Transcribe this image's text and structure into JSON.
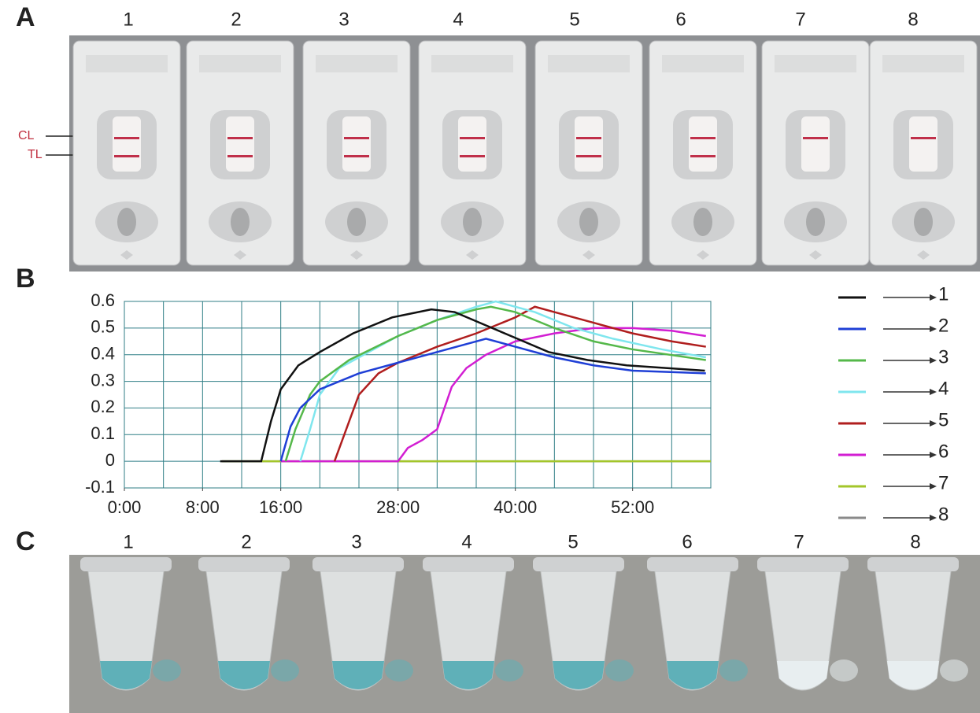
{
  "panel_a": {
    "label": "A",
    "lanes": [
      "1",
      "2",
      "3",
      "4",
      "5",
      "6",
      "7",
      "8"
    ],
    "control_label": "CL",
    "test_label": "TL",
    "test_line": [
      true,
      true,
      true,
      true,
      true,
      true,
      false,
      false
    ]
  },
  "chart_data": {
    "type": "line",
    "label": "B",
    "xlim": [
      0,
      60
    ],
    "ylim": [
      -0.1,
      0.6
    ],
    "xticks": [
      {
        "value": 0,
        "label": "0:00"
      },
      {
        "value": 8,
        "label": "8:00"
      },
      {
        "value": 16,
        "label": "16:00"
      },
      {
        "value": 28,
        "label": "28:00"
      },
      {
        "value": 40,
        "label": "40:00"
      },
      {
        "value": 52,
        "label": "52:00"
      }
    ],
    "xgrid": [
      0,
      4,
      8,
      12,
      16,
      20,
      24,
      28,
      32,
      36,
      40,
      44,
      48,
      52,
      56,
      60
    ],
    "yticks": [
      0.6,
      0.5,
      0.4,
      0.3,
      0.2,
      0.1,
      0,
      -0.1
    ],
    "grid": true,
    "series": [
      {
        "name": "1",
        "color": "#111111",
        "x": [
          9.8,
          14,
          15,
          16,
          17.8,
          20,
          23.4,
          27.4,
          31.4,
          33.8,
          37,
          40.2,
          43.4,
          47.4,
          51.4,
          59.4
        ],
        "values": [
          0,
          0,
          0.15,
          0.27,
          0.36,
          0.41,
          0.48,
          0.54,
          0.57,
          0.56,
          0.51,
          0.46,
          0.41,
          0.38,
          0.36,
          0.34
        ]
      },
      {
        "name": "2",
        "color": "#1f3fd6",
        "x": [
          16,
          17,
          18,
          20,
          24,
          28,
          32,
          36,
          37,
          40,
          44,
          48,
          52,
          59.5
        ],
        "values": [
          0,
          0.13,
          0.2,
          0.27,
          0.33,
          0.37,
          0.41,
          0.45,
          0.46,
          0.43,
          0.39,
          0.36,
          0.34,
          0.33
        ]
      },
      {
        "name": "3",
        "color": "#55b84a",
        "x": [
          16.5,
          17.5,
          19,
          20,
          23,
          28,
          32,
          36,
          37.5,
          40,
          44,
          48,
          52,
          59.5
        ],
        "values": [
          0,
          0.12,
          0.25,
          0.3,
          0.38,
          0.47,
          0.53,
          0.57,
          0.58,
          0.56,
          0.5,
          0.45,
          0.42,
          0.38
        ]
      },
      {
        "name": "4",
        "color": "#7fe6ee",
        "x": [
          18,
          19,
          20,
          22,
          28,
          32,
          36,
          38,
          42,
          46,
          50,
          55,
          59.5
        ],
        "values": [
          0,
          0.12,
          0.25,
          0.35,
          0.47,
          0.53,
          0.58,
          0.6,
          0.56,
          0.5,
          0.46,
          0.42,
          0.39
        ]
      },
      {
        "name": "5",
        "color": "#b01e1e",
        "x": [
          21.5,
          22.5,
          24,
          26,
          28,
          32,
          36,
          40,
          42,
          44,
          48,
          52,
          56,
          59.5
        ],
        "values": [
          0,
          0.1,
          0.25,
          0.33,
          0.37,
          0.43,
          0.48,
          0.54,
          0.58,
          0.56,
          0.52,
          0.48,
          0.45,
          0.43
        ]
      },
      {
        "name": "6",
        "color": "#d21ed2",
        "x": [
          16,
          28,
          29,
          30.5,
          32,
          33.5,
          35,
          37,
          40,
          44,
          48,
          52,
          56,
          59.5
        ],
        "values": [
          0,
          0,
          0.05,
          0.08,
          0.12,
          0.28,
          0.35,
          0.4,
          0.45,
          0.48,
          0.5,
          0.5,
          0.49,
          0.47
        ]
      },
      {
        "name": "7",
        "color": "#a3c62a",
        "x": [
          10,
          60
        ],
        "values": [
          0,
          0
        ]
      },
      {
        "name": "8",
        "color": "#8a8a8a",
        "x": [
          10,
          60
        ],
        "values": [
          0,
          0
        ]
      }
    ]
  },
  "panel_c": {
    "label": "C",
    "lanes": [
      "1",
      "2",
      "3",
      "4",
      "5",
      "6",
      "7",
      "8"
    ],
    "liquid": [
      "#5fb0b8",
      "#5fb0b8",
      "#5fb0b8",
      "#5fb0b8",
      "#5fb0b8",
      "#5fb0b8",
      "#e8eef0",
      "#e8eef0"
    ]
  }
}
